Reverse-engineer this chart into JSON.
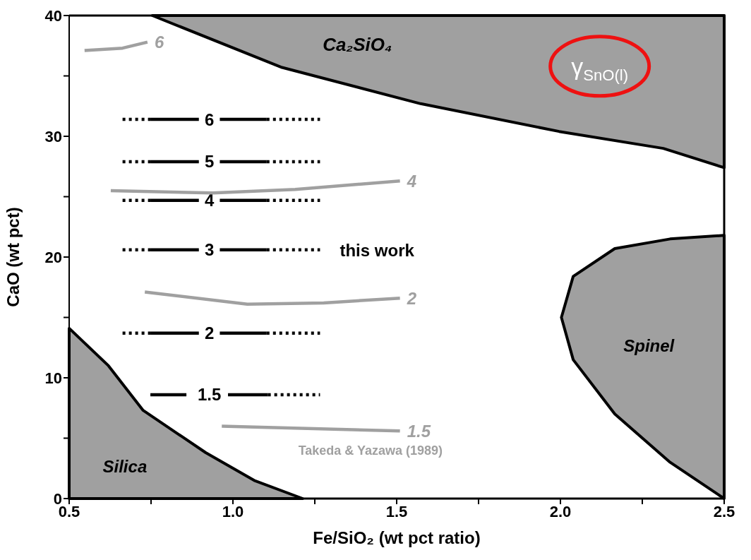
{
  "chart_data": {
    "type": "line",
    "xlabel": "Fe/SiO₂ (wt pct ratio)",
    "ylabel": "CaO (wt pct)",
    "xlim": [
      0.5,
      2.5
    ],
    "ylim": [
      0,
      40
    ],
    "xticks": [
      {
        "value": 0.5,
        "label": "0.5"
      },
      {
        "value": 0.75,
        "label": null
      },
      {
        "value": 1,
        "label": "1.0"
      },
      {
        "value": 1.25,
        "label": null
      },
      {
        "value": 1.5,
        "label": "1.5"
      },
      {
        "value": 1.75,
        "label": null
      },
      {
        "value": 2,
        "label": "2.0"
      },
      {
        "value": 2.25,
        "label": null
      },
      {
        "value": 2.5,
        "label": "2.5"
      }
    ],
    "yticks": [
      0,
      {
        "value": 5,
        "label": null
      },
      10,
      {
        "value": 15,
        "label": null
      },
      20,
      {
        "value": 25,
        "label": null
      },
      30,
      {
        "value": 35,
        "label": null
      },
      40
    ],
    "series": [
      {
        "type": "area",
        "color": "#a0a0a0",
        "x": [
          0.754,
          1.15,
          1.573,
          1.996,
          2.314,
          2.5,
          2.5
        ],
        "values": [
          40,
          35.7,
          32.7,
          30.4,
          29.0,
          27.4,
          40
        ]
      },
      {
        "type": "area",
        "color": "#a0a0a0",
        "x": [
          0.5,
          0.62,
          0.726,
          0.917,
          1.065,
          1.213,
          0.5
        ],
        "values": [
          14.1,
          11.0,
          7.3,
          3.8,
          1.5,
          0,
          0
        ]
      },
      {
        "type": "area",
        "color": "#a0a0a0",
        "x": [
          2.5,
          2.335,
          2.166,
          2.039,
          2.003,
          2.039,
          2.166,
          2.335,
          2.5
        ],
        "values": [
          21.8,
          21.5,
          20.7,
          18.4,
          15.0,
          11.5,
          7.0,
          3.0,
          0
        ]
      },
      {
        "name": "6",
        "color": "#000000",
        "line_style": "solid",
        "x": [
          0.748,
          0.896,
          0.928,
          0.96,
          1.103
        ],
        "values": [
          31.4,
          31.4,
          null,
          31.4,
          31.4
        ]
      },
      {
        "color": "#000000",
        "line_style": "dotted",
        "x": [
          0.663,
          0.748,
          1.0,
          1.103,
          1.266
        ],
        "values": [
          31.4,
          31.4,
          null,
          31.4,
          31.4
        ]
      },
      {
        "name": "5",
        "color": "#000000",
        "line_style": "solid",
        "x": [
          0.748,
          0.896,
          0.928,
          0.96,
          1.103
        ],
        "values": [
          27.9,
          27.9,
          null,
          27.9,
          27.9
        ]
      },
      {
        "color": "#000000",
        "line_style": "dotted",
        "x": [
          0.663,
          0.748,
          1.0,
          1.103,
          1.266
        ],
        "values": [
          27.9,
          27.9,
          null,
          27.9,
          27.9
        ]
      },
      {
        "name": "4",
        "color": "#000000",
        "line_style": "solid",
        "x": [
          0.748,
          0.896,
          0.928,
          0.96,
          1.103
        ],
        "values": [
          24.7,
          24.7,
          null,
          24.7,
          24.7
        ]
      },
      {
        "color": "#000000",
        "line_style": "dotted",
        "x": [
          0.663,
          0.748,
          1.0,
          1.103,
          1.266
        ],
        "values": [
          24.7,
          24.7,
          null,
          24.7,
          24.7
        ]
      },
      {
        "name": "3",
        "color": "#000000",
        "line_style": "solid",
        "x": [
          0.748,
          0.896,
          0.928,
          0.96,
          1.103
        ],
        "values": [
          20.6,
          20.6,
          null,
          20.6,
          20.6
        ]
      },
      {
        "color": "#000000",
        "line_style": "dotted",
        "x": [
          0.663,
          0.748,
          1.0,
          1.103,
          1.266
        ],
        "values": [
          20.6,
          20.6,
          null,
          20.6,
          20.6
        ]
      },
      {
        "name": "2",
        "color": "#000000",
        "line_style": "solid",
        "x": [
          0.748,
          0.896,
          0.928,
          0.96,
          1.103
        ],
        "values": [
          13.7,
          13.7,
          null,
          13.7,
          13.7
        ]
      },
      {
        "color": "#000000",
        "line_style": "dotted",
        "x": [
          0.663,
          0.748,
          1.0,
          1.103,
          1.266
        ],
        "values": [
          13.7,
          13.7,
          null,
          13.7,
          13.7
        ]
      },
      {
        "name": "1.5",
        "color": "#000000",
        "line_style": "solid",
        "x": [
          0.748,
          0.858,
          0.928,
          0.985,
          1.107
        ],
        "values": [
          8.6,
          8.6,
          null,
          8.6,
          8.6
        ]
      },
      {
        "color": "#000000",
        "line_style": "dotted",
        "x": [
          1.107,
          1.266
        ],
        "values": [
          8.6,
          8.6
        ]
      },
      {
        "name": "6",
        "color": "#a0a0a0",
        "line_style": "solid",
        "x": [
          0.547,
          0.663,
          0.739
        ],
        "values": [
          37.1,
          37.3,
          37.8
        ]
      },
      {
        "name": "4",
        "color": "#a0a0a0",
        "line_style": "solid",
        "x": [
          0.627,
          0.938,
          1.19,
          1.51
        ],
        "values": [
          25.5,
          25.3,
          25.6,
          26.3
        ]
      },
      {
        "name": "2",
        "color": "#a0a0a0",
        "line_style": "solid",
        "x": [
          0.731,
          1.044,
          1.277,
          1.51
        ],
        "values": [
          17.1,
          16.1,
          16.2,
          16.6
        ]
      },
      {
        "name": "1.5",
        "color": "#a0a0a0",
        "line_style": "solid",
        "x": [
          0.966,
          1.51
        ],
        "values": [
          6.0,
          5.6
        ]
      }
    ],
    "annotations": [
      "Ca₂SiO₄",
      "Silica",
      "Spinel",
      "this work",
      "Takeda & Yazawa (1989)",
      "γ$_{SnO(l)}$"
    ]
  }
}
